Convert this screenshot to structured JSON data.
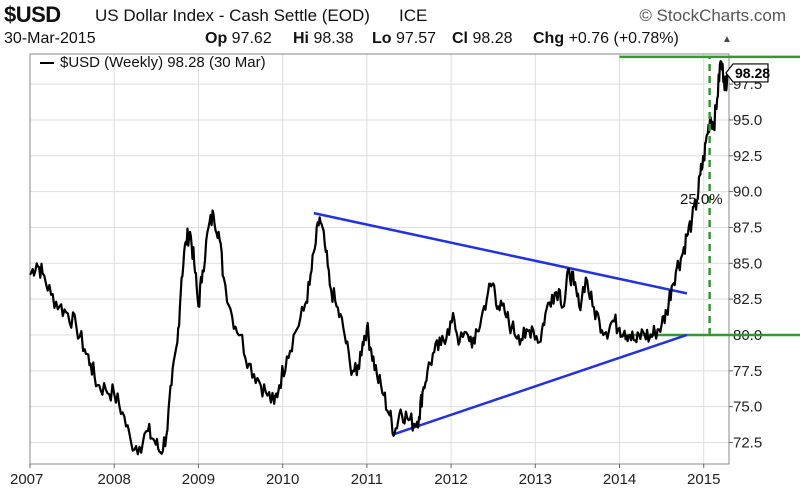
{
  "header": {
    "symbol": "$USD",
    "description": "US Dollar Index - Cash Settle (EOD)",
    "exchange": "ICE",
    "brand": "© StockCharts.com",
    "date": "30-Mar-2015",
    "open_label": "Op",
    "open": "97.62",
    "high_label": "Hi",
    "high": "98.38",
    "low_label": "Lo",
    "low": "97.57",
    "close_label": "Cl",
    "close": "98.28",
    "change_label": "Chg",
    "change": "+0.76 (+0.78%)"
  },
  "chart_data": {
    "type": "line",
    "legend": "$USD (Weekly) 98.28 (30 Mar)",
    "last_value_label": "98.28",
    "annotation": "25.0%",
    "colors": {
      "price": "#000000",
      "trendline": "#2233dd",
      "level": "#33992d"
    },
    "ylim": [
      71,
      99.6
    ],
    "xlim": [
      2007.0,
      2015.3
    ],
    "y_ticks": [
      "72.5",
      "75.0",
      "77.5",
      "80.0",
      "82.5",
      "85.0",
      "87.5",
      "90.0",
      "92.5",
      "95.0",
      "97.5"
    ],
    "x_ticks": [
      "2007",
      "2008",
      "2009",
      "2010",
      "2011",
      "2012",
      "2013",
      "2014",
      "2015"
    ],
    "series": [
      {
        "values": [
          [
            2007.0,
            84.2
          ],
          [
            2007.08,
            85.0
          ],
          [
            2007.15,
            84.3
          ],
          [
            2007.25,
            82.8
          ],
          [
            2007.35,
            82.0
          ],
          [
            2007.45,
            81.5
          ],
          [
            2007.55,
            80.6
          ],
          [
            2007.65,
            79.0
          ],
          [
            2007.72,
            78.0
          ],
          [
            2007.8,
            76.5
          ],
          [
            2007.9,
            76.2
          ],
          [
            2008.0,
            75.9
          ],
          [
            2008.1,
            74.6
          ],
          [
            2008.2,
            72.5
          ],
          [
            2008.3,
            72.2
          ],
          [
            2008.4,
            73.3
          ],
          [
            2008.48,
            72.6
          ],
          [
            2008.55,
            71.8
          ],
          [
            2008.62,
            73.0
          ],
          [
            2008.68,
            76.5
          ],
          [
            2008.75,
            79.5
          ],
          [
            2008.8,
            84.0
          ],
          [
            2008.85,
            86.5
          ],
          [
            2008.9,
            87.2
          ],
          [
            2008.95,
            85.0
          ],
          [
            2009.0,
            82.0
          ],
          [
            2009.05,
            84.5
          ],
          [
            2009.12,
            87.5
          ],
          [
            2009.18,
            88.4
          ],
          [
            2009.24,
            87.2
          ],
          [
            2009.3,
            84.0
          ],
          [
            2009.4,
            81.3
          ],
          [
            2009.5,
            80.0
          ],
          [
            2009.6,
            78.0
          ],
          [
            2009.7,
            77.0
          ],
          [
            2009.8,
            76.0
          ],
          [
            2009.9,
            75.2
          ],
          [
            2009.96,
            76.5
          ],
          [
            2010.05,
            78.5
          ],
          [
            2010.15,
            80.2
          ],
          [
            2010.25,
            81.7
          ],
          [
            2010.32,
            83.5
          ],
          [
            2010.38,
            86.0
          ],
          [
            2010.44,
            88.2
          ],
          [
            2010.5,
            86.3
          ],
          [
            2010.56,
            83.5
          ],
          [
            2010.64,
            82.0
          ],
          [
            2010.72,
            80.5
          ],
          [
            2010.8,
            78.0
          ],
          [
            2010.88,
            77.2
          ],
          [
            2010.95,
            79.5
          ],
          [
            2011.0,
            80.5
          ],
          [
            2011.05,
            79.0
          ],
          [
            2011.12,
            77.2
          ],
          [
            2011.2,
            75.8
          ],
          [
            2011.27,
            74.4
          ],
          [
            2011.33,
            73.2
          ],
          [
            2011.4,
            74.8
          ],
          [
            2011.48,
            74.2
          ],
          [
            2011.56,
            73.8
          ],
          [
            2011.62,
            74.3
          ],
          [
            2011.66,
            76.0
          ],
          [
            2011.72,
            77.5
          ],
          [
            2011.8,
            78.8
          ],
          [
            2011.88,
            79.3
          ],
          [
            2011.96,
            80.4
          ],
          [
            2012.04,
            81.0
          ],
          [
            2012.1,
            79.5
          ],
          [
            2012.2,
            80.0
          ],
          [
            2012.28,
            79.4
          ],
          [
            2012.36,
            81.2
          ],
          [
            2012.44,
            83.0
          ],
          [
            2012.5,
            83.6
          ],
          [
            2012.56,
            82.0
          ],
          [
            2012.64,
            81.5
          ],
          [
            2012.72,
            80.5
          ],
          [
            2012.8,
            80.0
          ],
          [
            2012.88,
            79.8
          ],
          [
            2012.96,
            80.6
          ],
          [
            2013.05,
            79.5
          ],
          [
            2013.12,
            81.5
          ],
          [
            2013.2,
            82.8
          ],
          [
            2013.28,
            83.2
          ],
          [
            2013.34,
            82.0
          ],
          [
            2013.4,
            84.6
          ],
          [
            2013.46,
            83.5
          ],
          [
            2013.52,
            82.0
          ],
          [
            2013.6,
            84.0
          ],
          [
            2013.68,
            82.0
          ],
          [
            2013.76,
            81.0
          ],
          [
            2013.84,
            80.2
          ],
          [
            2013.92,
            81.0
          ],
          [
            2014.0,
            80.5
          ],
          [
            2014.06,
            80.3
          ],
          [
            2014.12,
            80.0
          ],
          [
            2014.2,
            79.5
          ],
          [
            2014.28,
            80.2
          ],
          [
            2014.36,
            79.8
          ],
          [
            2014.42,
            80.2
          ],
          [
            2014.5,
            80.7
          ],
          [
            2014.56,
            81.6
          ],
          [
            2014.62,
            83.4
          ],
          [
            2014.68,
            84.7
          ],
          [
            2014.74,
            85.5
          ],
          [
            2014.8,
            86.9
          ],
          [
            2014.86,
            88.0
          ],
          [
            2014.92,
            89.4
          ],
          [
            2014.96,
            91.2
          ],
          [
            2015.0,
            92.3
          ],
          [
            2015.04,
            94.0
          ],
          [
            2015.08,
            95.2
          ],
          [
            2015.12,
            94.6
          ],
          [
            2015.16,
            96.5
          ],
          [
            2015.2,
            99.1
          ],
          [
            2015.24,
            98.0
          ],
          [
            2015.26,
            97.4
          ],
          [
            2015.28,
            98.28
          ]
        ]
      }
    ],
    "trendlines": [
      {
        "from": [
          2010.37,
          88.5
        ],
        "to": [
          2014.8,
          82.9
        ]
      },
      {
        "from": [
          2011.33,
          73.1
        ],
        "to": [
          2014.8,
          80.0
        ]
      }
    ],
    "levels": [
      {
        "value": 80.0,
        "x_start": 2014.0
      },
      {
        "value": 99.4,
        "x_start": 2014.0
      }
    ],
    "vertical_marker": {
      "x": 2015.07,
      "y_from": 80.0,
      "y_to": 99.4
    }
  }
}
